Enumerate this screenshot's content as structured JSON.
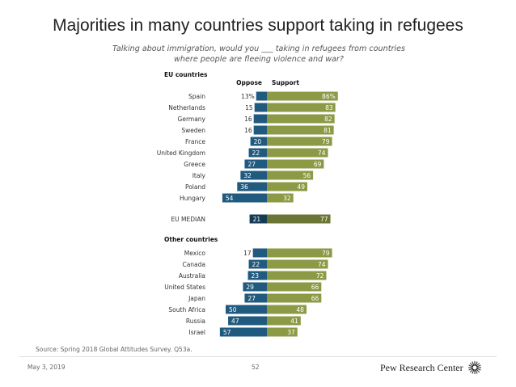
{
  "title": "Majorities in many countries support taking in refugees",
  "subtitle": "Talking about immigration, would you ___ taking in refugees from countries where people are fleeing violence and war?",
  "source": "Source: Spring 2018 Global Attitudes Survey. Q53a.",
  "footer": {
    "date": "May 3, 2019",
    "page": "52",
    "logo": "Pew Research Center"
  },
  "colors": {
    "oppose": "#215a7f",
    "support": "#8c9a45",
    "median_oppose": "#163c55",
    "median_support": "#6b7534"
  },
  "chart_data": {
    "type": "bar",
    "orientation": "horizontal-diverging",
    "series_names": [
      "Oppose",
      "Support"
    ],
    "groups": [
      {
        "name": "EU countries",
        "rows": [
          {
            "label": "Spain",
            "oppose": 13,
            "support": 86,
            "oppose_label": "13%",
            "support_label": "86%"
          },
          {
            "label": "Netherlands",
            "oppose": 15,
            "support": 83,
            "oppose_label": "15",
            "support_label": "83"
          },
          {
            "label": "Germany",
            "oppose": 16,
            "support": 82,
            "oppose_label": "16",
            "support_label": "82"
          },
          {
            "label": "Sweden",
            "oppose": 16,
            "support": 81,
            "oppose_label": "16",
            "support_label": "81"
          },
          {
            "label": "France",
            "oppose": 20,
            "support": 79,
            "oppose_label": "20",
            "support_label": "79"
          },
          {
            "label": "United Kingdom",
            "oppose": 22,
            "support": 74,
            "oppose_label": "22",
            "support_label": "74"
          },
          {
            "label": "Greece",
            "oppose": 27,
            "support": 69,
            "oppose_label": "27",
            "support_label": "69"
          },
          {
            "label": "Italy",
            "oppose": 32,
            "support": 56,
            "oppose_label": "32",
            "support_label": "56"
          },
          {
            "label": "Poland",
            "oppose": 36,
            "support": 49,
            "oppose_label": "36",
            "support_label": "49"
          },
          {
            "label": "Hungary",
            "oppose": 54,
            "support": 32,
            "oppose_label": "54",
            "support_label": "32"
          }
        ]
      },
      {
        "name": "",
        "median": true,
        "rows": [
          {
            "label": "EU MEDIAN",
            "oppose": 21,
            "support": 77,
            "oppose_label": "21",
            "support_label": "77"
          }
        ]
      },
      {
        "name": "Other countries",
        "rows": [
          {
            "label": "Mexico",
            "oppose": 17,
            "support": 79,
            "oppose_label": "17",
            "support_label": "79"
          },
          {
            "label": "Canada",
            "oppose": 22,
            "support": 74,
            "oppose_label": "22",
            "support_label": "74"
          },
          {
            "label": "Australia",
            "oppose": 23,
            "support": 72,
            "oppose_label": "23",
            "support_label": "72"
          },
          {
            "label": "United States",
            "oppose": 29,
            "support": 66,
            "oppose_label": "29",
            "support_label": "66"
          },
          {
            "label": "Japan",
            "oppose": 27,
            "support": 66,
            "oppose_label": "27",
            "support_label": "66"
          },
          {
            "label": "South Africa",
            "oppose": 50,
            "support": 48,
            "oppose_label": "50",
            "support_label": "48"
          },
          {
            "label": "Russia",
            "oppose": 47,
            "support": 41,
            "oppose_label": "47",
            "support_label": "41"
          },
          {
            "label": "Israel",
            "oppose": 57,
            "support": 37,
            "oppose_label": "57",
            "support_label": "37"
          }
        ]
      }
    ]
  }
}
